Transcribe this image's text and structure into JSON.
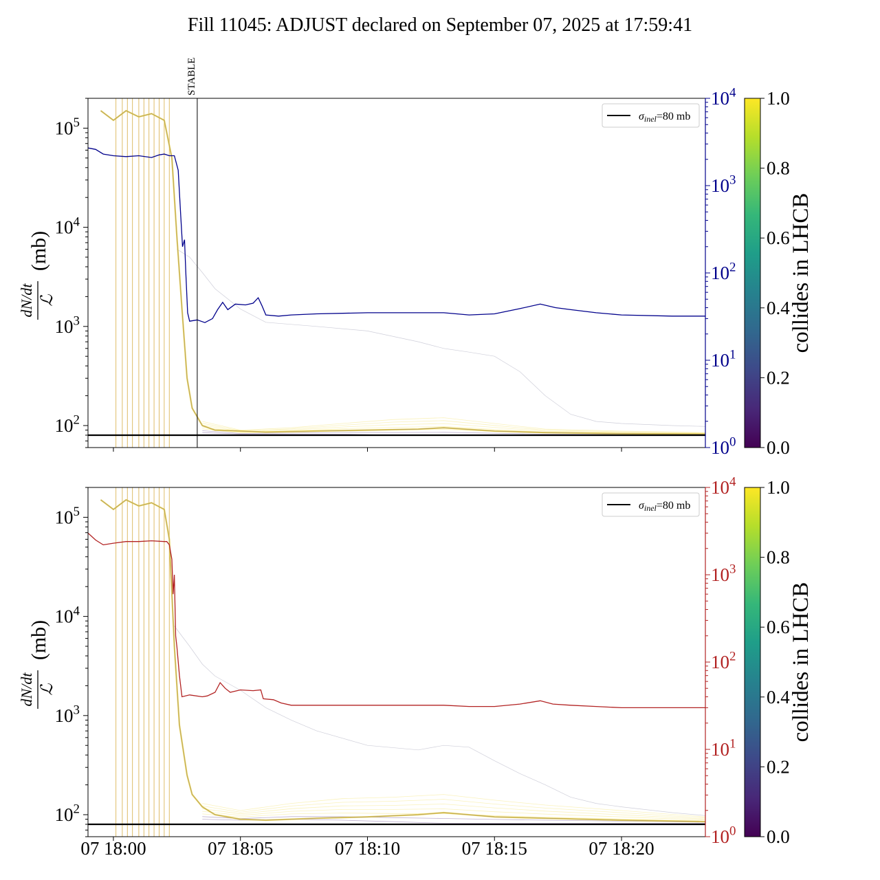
{
  "title": "Fill 11045: ADJUST declared on September 07, 2025 at 17:59:41",
  "colors": {
    "top_right": "#00008b",
    "bottom_right": "#b22222",
    "reference": "#000000",
    "viridis": [
      "#440154",
      "#482878",
      "#3e4989",
      "#31688e",
      "#26828e",
      "#1f9e89",
      "#35b779",
      "#6ece58",
      "#b5de2b",
      "#fde725"
    ]
  },
  "chart_data": [
    {
      "type": "line",
      "panel": "top",
      "ylabel": "(mb)",
      "ylabel_fraction": {
        "numerator": "dN/dt",
        "denominator": "ℒ"
      },
      "y_scale": "log",
      "ylim": [
        60,
        200000
      ],
      "y_ticks": [
        {
          "value": 100,
          "label": "10",
          "exp": "2"
        },
        {
          "value": 1000,
          "label": "10",
          "exp": "3"
        },
        {
          "value": 10000,
          "label": "10",
          "exp": "4"
        },
        {
          "value": 100000,
          "label": "10",
          "exp": "5"
        }
      ],
      "xlim_minutes": [
        -1.0,
        23.3
      ],
      "x_ticks": [],
      "y2_scale": "log",
      "y2lim": [
        1,
        10000
      ],
      "y2_ticks": [
        {
          "value": 1,
          "label": "10",
          "exp": "0"
        },
        {
          "value": 10,
          "label": "10",
          "exp": "1"
        },
        {
          "value": 100,
          "label": "10",
          "exp": "2"
        },
        {
          "value": 1000,
          "label": "10",
          "exp": "3"
        },
        {
          "value": 10000,
          "label": "10",
          "exp": "4"
        }
      ],
      "stable_marker": {
        "label": "STABLE",
        "x": 3.3
      },
      "reference_line": {
        "value": 80,
        "legend_symbol": "σ",
        "legend_sub": "inel",
        "legend_rest": "=80 mb"
      },
      "colorbar": {
        "label": "collides in LHCB",
        "range": [
          0,
          1
        ],
        "ticks": [
          "0.0",
          "0.2",
          "0.4",
          "0.6",
          "0.8",
          "1.0"
        ]
      },
      "bunch_lines_x": [
        0.1,
        0.35,
        0.55,
        0.75,
        1.0,
        1.2,
        1.4,
        1.6,
        1.8,
        2.0,
        2.2
      ],
      "series": [
        {
          "role": "right_axis",
          "points": [
            [
              -1.0,
              2700
            ],
            [
              -0.7,
              2600
            ],
            [
              -0.4,
              2300
            ],
            [
              0.0,
              2200
            ],
            [
              0.5,
              2150
            ],
            [
              1.0,
              2200
            ],
            [
              1.5,
              2100
            ],
            [
              1.8,
              2250
            ],
            [
              2.0,
              2300
            ],
            [
              2.2,
              2200
            ],
            [
              2.4,
              2200
            ],
            [
              2.55,
              1500
            ],
            [
              2.65,
              450
            ],
            [
              2.72,
              200
            ],
            [
              2.8,
              240
            ],
            [
              2.85,
              100
            ],
            [
              2.92,
              35
            ],
            [
              3.0,
              28
            ],
            [
              3.3,
              29
            ],
            [
              3.6,
              27
            ],
            [
              3.9,
              30
            ],
            [
              4.1,
              38
            ],
            [
              4.3,
              46
            ],
            [
              4.5,
              38
            ],
            [
              4.8,
              44
            ],
            [
              5.2,
              43
            ],
            [
              5.5,
              45
            ],
            [
              5.7,
              52
            ],
            [
              5.85,
              42
            ],
            [
              6.0,
              33
            ],
            [
              6.5,
              32
            ],
            [
              7.0,
              33
            ],
            [
              8.0,
              34
            ],
            [
              10.0,
              35
            ],
            [
              12.0,
              35
            ],
            [
              13.0,
              35
            ],
            [
              14.0,
              33
            ],
            [
              15.0,
              34
            ],
            [
              16.0,
              39
            ],
            [
              16.8,
              44
            ],
            [
              17.4,
              40
            ],
            [
              18.0,
              38
            ],
            [
              19.0,
              35
            ],
            [
              20.0,
              33
            ],
            [
              22.0,
              32
            ],
            [
              23.3,
              32
            ]
          ]
        },
        {
          "role": "bunch_envelope",
          "points": [
            [
              -0.5,
              150000
            ],
            [
              0.0,
              120000
            ],
            [
              0.5,
              150000
            ],
            [
              1.0,
              130000
            ],
            [
              1.5,
              140000
            ],
            [
              2.0,
              120000
            ],
            [
              2.3,
              50000
            ],
            [
              2.5,
              8000
            ],
            [
              2.7,
              1500
            ],
            [
              2.9,
              300
            ],
            [
              3.1,
              150
            ],
            [
              3.5,
              100
            ],
            [
              4.0,
              90
            ],
            [
              5.0,
              88
            ],
            [
              6.0,
              86
            ],
            [
              8.0,
              88
            ],
            [
              10.0,
              90
            ],
            [
              12.0,
              92
            ],
            [
              13.0,
              95
            ],
            [
              15.0,
              88
            ],
            [
              17.0,
              85
            ],
            [
              20.0,
              83
            ],
            [
              23.3,
              82
            ]
          ]
        },
        {
          "role": "bunch_upper",
          "points": [
            [
              3.5,
              110
            ],
            [
              5.0,
              90
            ],
            [
              7.0,
              95
            ],
            [
              9.0,
              105
            ],
            [
              11.0,
              115
            ],
            [
              13.0,
              120
            ],
            [
              15.0,
              105
            ],
            [
              17.0,
              92
            ],
            [
              20.0,
              88
            ],
            [
              23.3,
              85
            ]
          ]
        },
        {
          "role": "bunch_lower",
          "points": [
            [
              3.5,
              85
            ],
            [
              5.0,
              82
            ],
            [
              10.0,
              82
            ],
            [
              15.0,
              82
            ],
            [
              20.0,
              80
            ],
            [
              23.3,
              80
            ]
          ]
        },
        {
          "role": "faint_trace",
          "points": [
            [
              2.5,
              6000
            ],
            [
              3.0,
              5000
            ],
            [
              3.5,
              3500
            ],
            [
              4.0,
              2400
            ],
            [
              5.0,
              1500
            ],
            [
              6.0,
              1100
            ],
            [
              8.0,
              1000
            ],
            [
              10.0,
              900
            ],
            [
              12.0,
              700
            ],
            [
              13.0,
              600
            ],
            [
              14.0,
              550
            ],
            [
              15.0,
              500
            ],
            [
              16.0,
              350
            ],
            [
              17.0,
              200
            ],
            [
              18.0,
              130
            ],
            [
              19.0,
              110
            ],
            [
              20.0,
              105
            ],
            [
              22.0,
              100
            ],
            [
              23.3,
              98
            ]
          ]
        }
      ]
    },
    {
      "type": "line",
      "panel": "bottom",
      "ylabel": "(mb)",
      "ylabel_fraction": {
        "numerator": "dN/dt",
        "denominator": "ℒ"
      },
      "y_scale": "log",
      "ylim": [
        60,
        200000
      ],
      "y_ticks": [
        {
          "value": 100,
          "label": "10",
          "exp": "2"
        },
        {
          "value": 1000,
          "label": "10",
          "exp": "3"
        },
        {
          "value": 10000,
          "label": "10",
          "exp": "4"
        },
        {
          "value": 100000,
          "label": "10",
          "exp": "5"
        }
      ],
      "xlim_minutes": [
        -1.0,
        23.3
      ],
      "x_ticks": [
        {
          "value": 0,
          "label": "07 18:00"
        },
        {
          "value": 5,
          "label": "07 18:05"
        },
        {
          "value": 10,
          "label": "07 18:10"
        },
        {
          "value": 15,
          "label": "07 18:15"
        },
        {
          "value": 20,
          "label": "07 18:20"
        }
      ],
      "y2_scale": "log",
      "y2lim": [
        1,
        10000
      ],
      "y2_ticks": [
        {
          "value": 1,
          "label": "10",
          "exp": "0"
        },
        {
          "value": 10,
          "label": "10",
          "exp": "1"
        },
        {
          "value": 100,
          "label": "10",
          "exp": "2"
        },
        {
          "value": 1000,
          "label": "10",
          "exp": "3"
        },
        {
          "value": 10000,
          "label": "10",
          "exp": "4"
        }
      ],
      "reference_line": {
        "value": 80,
        "legend_symbol": "σ",
        "legend_sub": "inel",
        "legend_rest": "=80 mb"
      },
      "colorbar": {
        "label": "collides in LHCB",
        "range": [
          0,
          1
        ],
        "ticks": [
          "0.0",
          "0.2",
          "0.4",
          "0.6",
          "0.8",
          "1.0"
        ]
      },
      "bunch_lines_x": [
        0.1,
        0.35,
        0.55,
        0.75,
        1.0,
        1.2,
        1.4,
        1.6,
        1.8,
        2.0,
        2.2
      ],
      "series": [
        {
          "role": "right_axis",
          "points": [
            [
              -1.0,
              3000
            ],
            [
              -0.7,
              2500
            ],
            [
              -0.4,
              2200
            ],
            [
              0.0,
              2300
            ],
            [
              0.5,
              2400
            ],
            [
              1.0,
              2400
            ],
            [
              1.5,
              2450
            ],
            [
              2.0,
              2400
            ],
            [
              2.1,
              2400
            ],
            [
              2.2,
              2200
            ],
            [
              2.3,
              1500
            ],
            [
              2.35,
              600
            ],
            [
              2.4,
              1000
            ],
            [
              2.45,
              200
            ],
            [
              2.5,
              150
            ],
            [
              2.6,
              70
            ],
            [
              2.7,
              40
            ],
            [
              3.0,
              42
            ],
            [
              3.5,
              40
            ],
            [
              3.7,
              41
            ],
            [
              4.0,
              45
            ],
            [
              4.2,
              58
            ],
            [
              4.4,
              50
            ],
            [
              4.6,
              45
            ],
            [
              5.0,
              48
            ],
            [
              5.5,
              47
            ],
            [
              5.8,
              48
            ],
            [
              5.9,
              38
            ],
            [
              6.3,
              37
            ],
            [
              6.6,
              34
            ],
            [
              7.0,
              32
            ],
            [
              8.0,
              32
            ],
            [
              10.0,
              32
            ],
            [
              12.0,
              32
            ],
            [
              13.0,
              32
            ],
            [
              14.0,
              31
            ],
            [
              15.0,
              31
            ],
            [
              16.0,
              33
            ],
            [
              16.8,
              36
            ],
            [
              17.3,
              33
            ],
            [
              18.0,
              32
            ],
            [
              19.0,
              31
            ],
            [
              20.0,
              30
            ],
            [
              22.0,
              30
            ],
            [
              23.3,
              30
            ]
          ]
        },
        {
          "role": "bunch_envelope",
          "points": [
            [
              -0.5,
              150000
            ],
            [
              0.0,
              120000
            ],
            [
              0.5,
              150000
            ],
            [
              1.0,
              130000
            ],
            [
              1.5,
              140000
            ],
            [
              2.0,
              120000
            ],
            [
              2.2,
              60000
            ],
            [
              2.4,
              5000
            ],
            [
              2.6,
              800
            ],
            [
              2.9,
              250
            ],
            [
              3.1,
              160
            ],
            [
              3.5,
              120
            ],
            [
              4.0,
              100
            ],
            [
              5.0,
              90
            ],
            [
              6.0,
              88
            ],
            [
              8.0,
              92
            ],
            [
              10.0,
              95
            ],
            [
              12.0,
              100
            ],
            [
              13.0,
              105
            ],
            [
              15.0,
              95
            ],
            [
              17.0,
              92
            ],
            [
              20.0,
              88
            ],
            [
              23.3,
              85
            ]
          ]
        },
        {
          "role": "bunch_upper",
          "points": [
            [
              3.5,
              130
            ],
            [
              5.0,
              110
            ],
            [
              7.0,
              130
            ],
            [
              9.0,
              145
            ],
            [
              11.0,
              150
            ],
            [
              13.0,
              160
            ],
            [
              15.0,
              140
            ],
            [
              17.0,
              125
            ],
            [
              20.0,
              110
            ],
            [
              23.3,
              95
            ]
          ]
        },
        {
          "role": "bunch_lower",
          "points": [
            [
              3.5,
              90
            ],
            [
              5.0,
              88
            ],
            [
              10.0,
              90
            ],
            [
              15.0,
              88
            ],
            [
              20.0,
              85
            ],
            [
              23.3,
              82
            ]
          ]
        },
        {
          "role": "faint_trace",
          "points": [
            [
              2.4,
              8000
            ],
            [
              3.0,
              5000
            ],
            [
              3.5,
              3300
            ],
            [
              4.0,
              2500
            ],
            [
              5.0,
              1800
            ],
            [
              6.0,
              1200
            ],
            [
              7.0,
              900
            ],
            [
              8.0,
              700
            ],
            [
              10.0,
              500
            ],
            [
              12.0,
              450
            ],
            [
              13.0,
              500
            ],
            [
              14.0,
              480
            ],
            [
              15.0,
              350
            ],
            [
              16.0,
              260
            ],
            [
              17.0,
              200
            ],
            [
              18.0,
              150
            ],
            [
              19.0,
              130
            ],
            [
              20.0,
              120
            ],
            [
              22.0,
              105
            ],
            [
              23.3,
              98
            ]
          ]
        }
      ]
    }
  ]
}
